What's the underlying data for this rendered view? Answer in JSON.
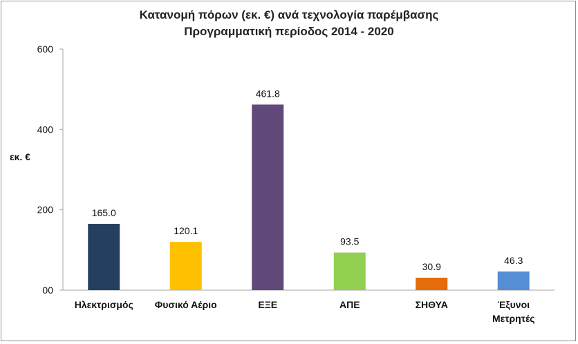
{
  "chart_data": {
    "type": "bar",
    "title_lines": [
      "Κατανομή πόρων (εκ. €) ανά τεχνολογία παρέμβασης",
      "Προγραμματική περίοδος 2014 - 2020"
    ],
    "ylabel": "εκ. €",
    "ylim": [
      0,
      600
    ],
    "yticks": [
      0,
      200,
      400,
      600
    ],
    "ytick_labels": [
      "00",
      "200",
      "400",
      "600"
    ],
    "categories": [
      [
        "Ηλεκτρισμός"
      ],
      [
        "Φυσικό Αέριο"
      ],
      [
        "ΕΞΕ"
      ],
      [
        "ΑΠΕ"
      ],
      [
        "ΣΗΘΥΑ"
      ],
      [
        "Έξυνοι",
        "Μετρητές"
      ]
    ],
    "values": [
      165.0,
      120.1,
      461.8,
      93.5,
      30.9,
      46.3
    ],
    "value_labels": [
      "165.0",
      "120.1",
      "461.8",
      "93.5",
      "30.9",
      "46.3"
    ],
    "colors": [
      "#243f60",
      "#ffc000",
      "#604a7b",
      "#92d050",
      "#e46c0a",
      "#558ed5"
    ],
    "grid": false,
    "legend": "none"
  }
}
